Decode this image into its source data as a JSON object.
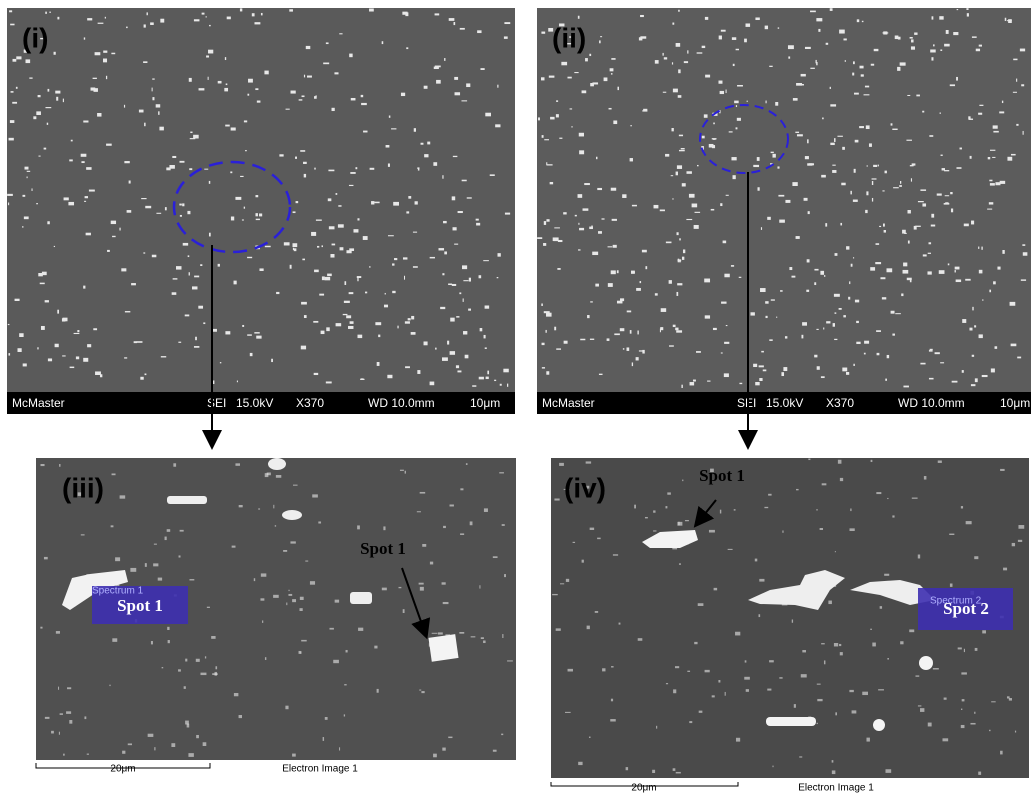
{
  "panels": [
    {
      "label": "(i)",
      "info_bar": [
        "McMaster",
        "SEI",
        "15.0kV",
        "X370",
        "WD 10.0mm",
        "10μm"
      ]
    },
    {
      "label": "(ii)",
      "info_bar": [
        "McMaster",
        "SEI",
        "15.0kV",
        "X370",
        "WD 10.0mm",
        "10μm"
      ]
    },
    {
      "label": "(iii)",
      "arrow_label": "Spot 1",
      "spectrum_label": "Spectrum 1",
      "spot_box": "Spot 1",
      "scale": "20μm",
      "caption": "Electron Image 1"
    },
    {
      "label": "(iv)",
      "arrow_label": "Spot 1",
      "spectrum_label": "Spectrum 2",
      "spot_box": "Spot 2",
      "scale": "20μm",
      "caption": "Electron Image 1"
    }
  ]
}
